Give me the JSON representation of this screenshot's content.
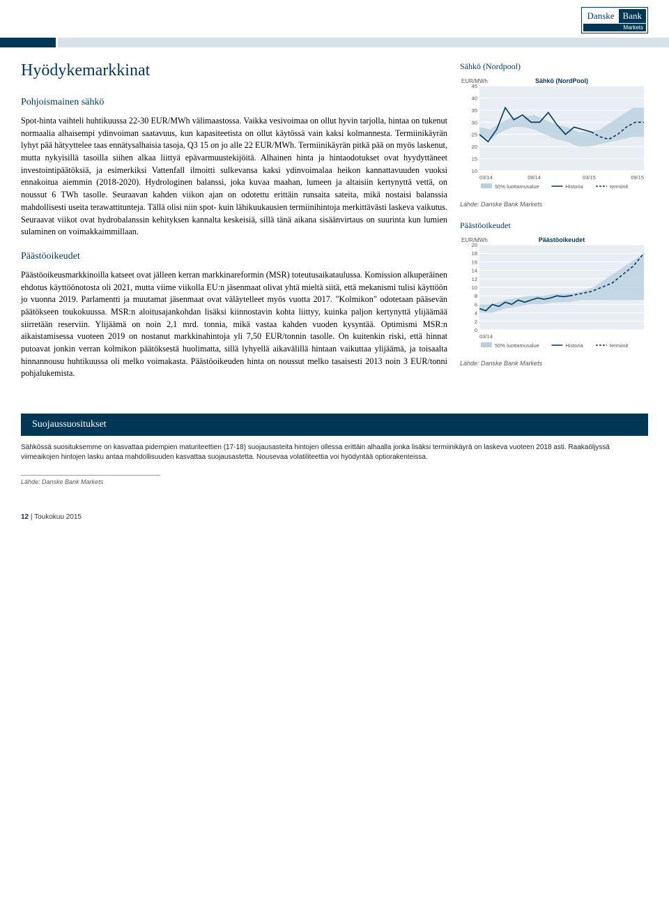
{
  "logo": {
    "brand1": "Danske",
    "brand2": "Bank",
    "sub": "Markets"
  },
  "page_title": "Hyödykemarkkinat",
  "section1": {
    "title": "Pohjoismainen sähkö",
    "body": "Spot-hinta vaihteli huhtikuussa 22-30 EUR/MWh välimaastossa. Vaikka vesivoimaa on ollut hyvin tarjolla, hintaa on tukenut normaalia alhaisempi ydinvoiman saatavuus, kun kapasiteetista on ollut käytössä vain kaksi kolmannesta. Termiinikäyrän lyhyt pää hätyyttelee taas ennätysalhaisia tasoja, Q3 15 on jo alle 22 EUR/MWh. Termiinikäyrän pitkä pää on myös laskenut, mutta nykyisillä tasoilla siihen alkaa liittyä epävarmuustekijöitä. Alhainen hinta ja hintaodotukset ovat hyydyttäneet investointipäätöksiä, ja esimerkiksi Vattenfall ilmoitti sulkevansa kaksi ydinvoimalaa heikon kannattavuuden vuoksi ennakoitua aiemmin (2018-2020). Hydrologinen balanssi, joka kuvaa maahan, lumeen ja altaisiin kertynyttä vettä, on noussut 6 TWh tasolle. Seuraavan kahden viikon ajan on odotettu erittäin runsaita sateita, mikä nostaisi balanssia mahdollisesti useita terawattitunteja. Tällä olisi niin spot- kuin lähikuukausien termiinihintoja merkittävästi laskeva vaikutus. Seuraavat viikot ovat hydrobalanssin kehityksen kannalta keskeisiä, sillä tänä aikana sisäänvirtaus on suurinta kun lumien sulaminen on voimakkaimmillaan."
  },
  "section2": {
    "title": "Päästöoikeudet",
    "body": "Päästöoikeusmarkkinoilla katseet ovat jälleen kerran markkinareformin (MSR) toteutusaikataulussa. Komission alkuperäinen ehdotus käyttöönotosta oli 2021, mutta viime viikolla EU:n jäsenmaat olivat yhtä mieltä siitä, että mekanismi tulisi käyttöön jo vuonna 2019. Parlamentti ja muutamat jäsenmaat ovat väläytelleet myös vuotta 2017. \"Kolmikon\" odotetaan pääsevän päätökseen toukokuussa. MSR:n aloitusajankohdan lisäksi kiinnostavin kohta liittyy, kuinka paljon kertynyttä ylijäämää siirretään reserviin. Ylijäämä on noin 2,1 mrd. tonnia, mikä vastaa kahden vuoden kysyntää. Optimismi MSR:n aikaistamisessa vuoteen 2019 on nostanut markkinahintoja yli 7,50 EUR/tonnin tasolle. On kuitenkin riski, että hinnat putoavat jonkin verran kolmikon päätöksestä huolimatta, sillä lyhyellä aikavälillä hintaan vaikuttaa ylijäämä, ja toisaalta hinnannousu huhtikuussa oli melko voimakasta. Päästöoikeuden hinta on noussut melko tasaisesti 2013 noin 3 EUR/tonni pohjalukemista."
  },
  "chart1": {
    "box_title": "Sähkö (Nordpool)",
    "chart_title": "Sähkö (NordPool)",
    "ylabel": "EUR/MWh",
    "ylim": [
      10,
      45
    ],
    "ytick_step": 5,
    "yticks": [
      10,
      15,
      20,
      25,
      30,
      35,
      40,
      45
    ],
    "xticks": [
      "03/14",
      "09/14",
      "03/15",
      "09/15"
    ],
    "x_positions": [
      0,
      0.333,
      0.667,
      1.0
    ],
    "band": {
      "color": "#b8cfe0",
      "upper": [
        28,
        27,
        30,
        32,
        32,
        33,
        31,
        29,
        28,
        26,
        26,
        27,
        30,
        33,
        36,
        36
      ],
      "lower": [
        24,
        23,
        26,
        28,
        28,
        27,
        25,
        23,
        22,
        20,
        20,
        21,
        22,
        23,
        24,
        24
      ]
    },
    "historia": {
      "color": "#003755",
      "values": [
        25,
        22,
        27,
        36,
        31,
        33,
        30,
        30,
        34,
        29,
        25,
        28,
        27,
        26
      ],
      "x_end": 0.68
    },
    "termiinit": {
      "color": "#003755",
      "dash": "4 3",
      "values": [
        26,
        24,
        23,
        25,
        28,
        30,
        30
      ],
      "x_start": 0.68,
      "x_end": 1.0
    },
    "legend": [
      {
        "type": "box",
        "color": "#b8cfe0",
        "label": "50% luottamusalue"
      },
      {
        "type": "line",
        "color": "#003755",
        "label": "Historia"
      },
      {
        "type": "dash",
        "color": "#003755",
        "label": "termiinit"
      }
    ],
    "source_label": "Lähde: Danske Bank Markets",
    "background": "#e8eef3",
    "grid_color": "#ffffff"
  },
  "chart2": {
    "box_title": "Päästöoikeudet",
    "chart_title": "Päästöoikeudet",
    "ylabel": "EUR/MWh",
    "ylim": [
      0,
      20
    ],
    "ytick_step": 2,
    "yticks": [
      0,
      2,
      4,
      6,
      8,
      10,
      12,
      14,
      16,
      18,
      20
    ],
    "xticks": [
      "03/14"
    ],
    "x_positions": [
      0
    ],
    "band": {
      "color": "#b8cfe0",
      "upper": [
        6,
        6,
        7,
        7.5,
        8,
        8,
        8.5,
        8.5,
        9,
        10,
        12,
        14,
        16,
        18
      ],
      "lower": [
        4,
        4,
        5,
        5.5,
        6,
        6,
        6.5,
        6.5,
        7,
        7,
        7,
        7,
        7,
        7
      ]
    },
    "historia": {
      "color": "#003755",
      "values": [
        5,
        4.5,
        6,
        5.5,
        6.5,
        6,
        7,
        6.5,
        7,
        7.5,
        7.2,
        7.5,
        8,
        7.8,
        8
      ],
      "x_end": 0.55
    },
    "termiinit": {
      "color": "#003755",
      "dash": "4 3",
      "values": [
        8,
        8.5,
        9,
        10,
        11,
        13,
        15,
        18
      ],
      "x_start": 0.55,
      "x_end": 1.0
    },
    "legend": [
      {
        "type": "box",
        "color": "#b8cfe0",
        "label": "50% luottamusalue"
      },
      {
        "type": "line",
        "color": "#003755",
        "label": "Historia"
      },
      {
        "type": "dash",
        "color": "#003755",
        "label": "termiinit"
      }
    ],
    "source_label": "Lähde: Danske Bank Markets",
    "background": "#e8eef3",
    "grid_color": "#ffffff"
  },
  "reco": {
    "title": "Suojaussuositukset",
    "body": "Sähkössä suosituksemme on kasvattaa pidempien maturiteettien (17-18) suojausasteita hintojen ollessa erittäin alhaalla jonka lisäksi termiinikäyrä on laskeva vuoteen 2018 asti. Raakaöljyssä viimeaikojen hintojen lasku antaa mahdollisuuden kasvattaa suojausastetta. Nousevaa volatiliteettia voi hyödyntää optiorakenteissa.",
    "source": "Lähde: Danske Bank Markets"
  },
  "footer": {
    "page": "12",
    "sep": "|",
    "issue": "Toukokuu 2015"
  }
}
